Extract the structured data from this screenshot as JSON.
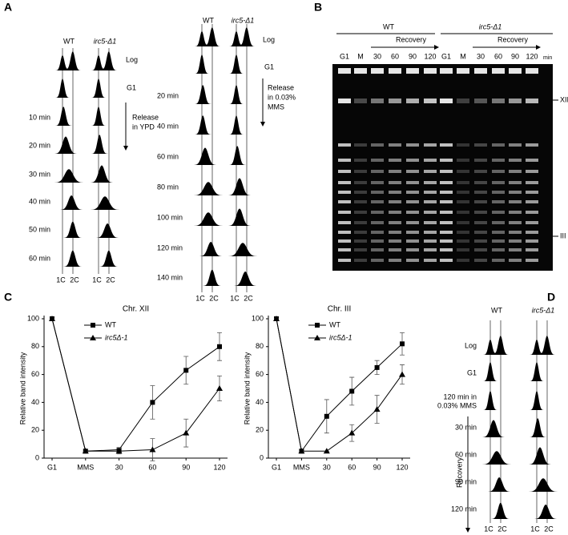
{
  "panel_a": {
    "label": "A",
    "left": {
      "columns": [
        "WT",
        "irc5-Δ1"
      ],
      "rows": [
        "Log",
        "G1",
        "10 min",
        "20 min",
        "30 min",
        "40 min",
        "50 min",
        "60 min"
      ],
      "annotation": [
        "Release",
        "in YPD"
      ],
      "axis_labels": [
        "1C",
        "2C"
      ]
    },
    "right": {
      "columns": [
        "WT",
        "irc5-Δ1"
      ],
      "rows": [
        "Log",
        "G1",
        "20 min",
        "40 min",
        "60 min",
        "80 min",
        "100 min",
        "120 min",
        "140 min"
      ],
      "annotation": [
        "Release",
        "in 0.03%",
        "MMS"
      ],
      "axis_labels": [
        "1C",
        "2C"
      ]
    }
  },
  "panel_b": {
    "label": "B",
    "groups": [
      "WT",
      "irc5-Δ1"
    ],
    "recovery": "Recovery",
    "lanes": [
      "G1",
      "M",
      "30",
      "60",
      "90",
      "120"
    ],
    "unit": "min",
    "bands": [
      "XII",
      "III"
    ]
  },
  "panel_c": {
    "label": "C"
  },
  "chart_data": [
    {
      "type": "line",
      "title": "Chr. XII",
      "y_label": "Relative band intensity",
      "categories": [
        "G1",
        "MMS",
        "30",
        "60",
        "90",
        "120"
      ],
      "ylim": [
        0,
        100
      ],
      "yticks": [
        0,
        20,
        40,
        60,
        80,
        100
      ],
      "series": [
        {
          "name": "WT",
          "color": "#000000",
          "marker": "square",
          "values": [
            100,
            5,
            6,
            40,
            63,
            80
          ],
          "errors": [
            0,
            0,
            1,
            12,
            10,
            10
          ]
        },
        {
          "name": "irc5Δ-1",
          "color": "#000000",
          "marker": "triangle",
          "values": [
            100,
            5,
            5,
            6,
            18,
            50
          ],
          "errors": [
            0,
            0,
            2,
            8,
            10,
            9
          ]
        }
      ]
    },
    {
      "type": "line",
      "title": "Chr. III",
      "y_label": "Relative band intensity",
      "categories": [
        "G1",
        "MMS",
        "30",
        "60",
        "90",
        "120"
      ],
      "ylim": [
        0,
        100
      ],
      "yticks": [
        0,
        20,
        40,
        60,
        80,
        100
      ],
      "series": [
        {
          "name": "WT",
          "color": "#000000",
          "marker": "square",
          "values": [
            100,
            5,
            30,
            48,
            65,
            82
          ],
          "errors": [
            0,
            0,
            12,
            10,
            5,
            8
          ]
        },
        {
          "name": "irc5Δ-1",
          "color": "#000000",
          "marker": "triangle",
          "values": [
            100,
            5,
            5,
            18,
            35,
            60
          ],
          "errors": [
            0,
            0,
            0,
            6,
            10,
            7
          ]
        }
      ]
    }
  ],
  "panel_d": {
    "label": "D",
    "columns": [
      "WT",
      "irc5-Δ1"
    ],
    "rows": [
      "Log",
      "G1",
      "120 min in",
      "0.03% MMS",
      "30 min",
      "60 min",
      "90 min",
      "120 min"
    ],
    "recovery": "Recovery",
    "axis_labels": [
      "1C",
      "2C"
    ]
  }
}
